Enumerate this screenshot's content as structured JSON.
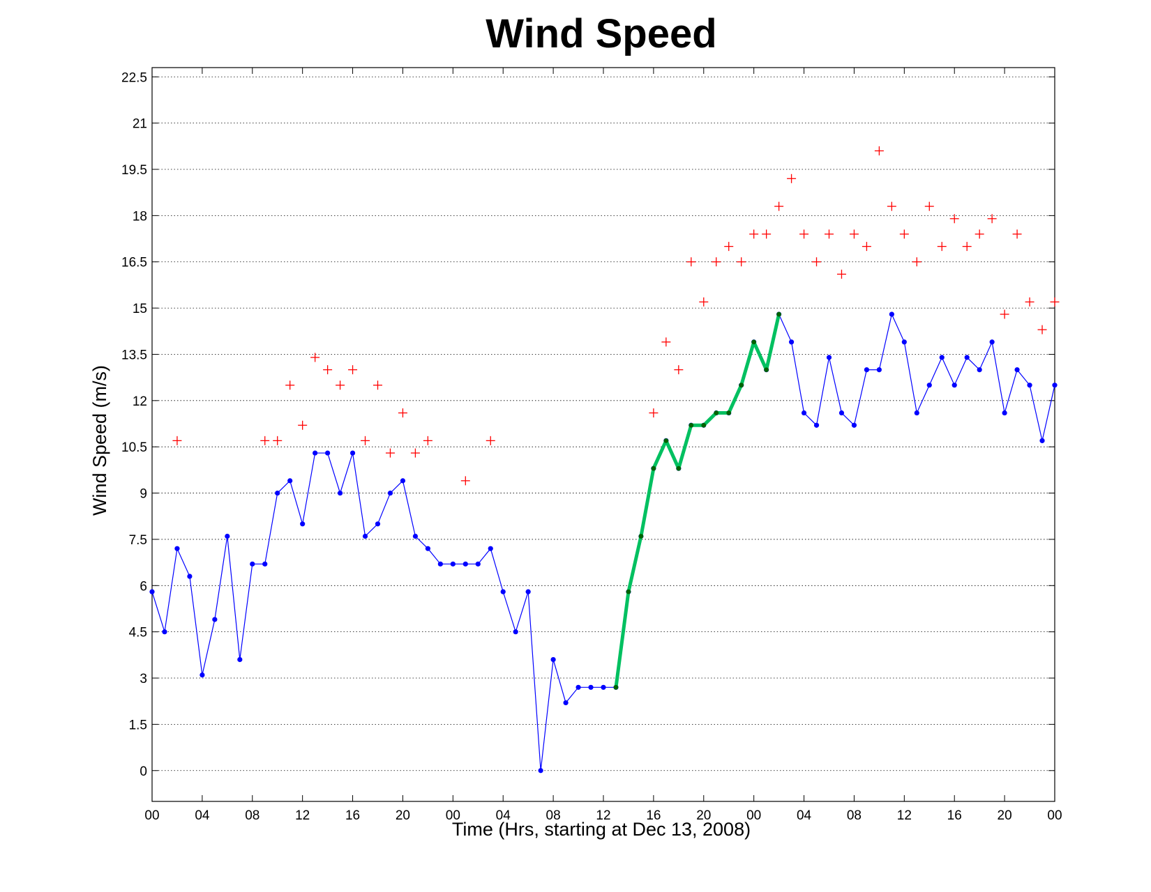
{
  "chart_data": {
    "type": "line",
    "title": "Wind Speed",
    "xlabel": "Time (Hrs, starting at Dec 13, 2008)",
    "ylabel": "Wind Speed (m/s)",
    "grid": true,
    "xlim": [
      0,
      72
    ],
    "ylim": [
      -1,
      22.8
    ],
    "x_tick_labels": [
      "00",
      "04",
      "08",
      "12",
      "16",
      "20",
      "00",
      "04",
      "08",
      "12",
      "16",
      "20",
      "00",
      "04",
      "08",
      "12",
      "16",
      "20",
      "00"
    ],
    "y_tick_labels": [
      "0",
      "1.5",
      "3",
      "4.5",
      "6",
      "7.5",
      "9",
      "10.5",
      "12",
      "13.5",
      "15",
      "16.5",
      "18",
      "19.5",
      "21",
      "22.5"
    ],
    "colors": {
      "observed": "#0000ff",
      "highlight": "#00c060",
      "highlight_marker": "#006400",
      "gust": "#ff0000"
    },
    "series": [
      {
        "role": "observed",
        "style": "blue line with dot markers",
        "x": [
          0,
          1,
          2,
          3,
          4,
          5,
          6,
          7,
          8,
          9,
          10,
          11,
          12,
          13,
          14,
          15,
          16,
          17,
          18,
          19,
          20,
          21,
          22,
          23,
          24,
          25,
          26,
          27,
          28,
          29,
          30,
          31,
          32,
          33,
          34,
          35,
          36,
          37,
          38,
          39,
          40,
          41,
          42,
          43,
          44,
          45,
          46,
          47,
          48,
          49,
          50,
          51,
          52,
          53,
          54,
          55,
          56,
          57,
          58,
          59,
          60,
          61,
          62,
          63,
          64,
          65,
          66,
          67,
          68,
          69,
          70,
          71,
          72
        ],
        "y": [
          5.8,
          4.5,
          7.2,
          6.3,
          3.1,
          4.9,
          7.6,
          3.6,
          6.7,
          6.7,
          9.0,
          9.4,
          8.0,
          10.3,
          10.3,
          9.0,
          10.3,
          7.6,
          8.0,
          9.0,
          9.4,
          7.6,
          7.2,
          6.7,
          6.7,
          6.7,
          6.7,
          7.2,
          5.8,
          4.5,
          5.8,
          0.0,
          3.6,
          2.2,
          2.7,
          2.7,
          2.7,
          2.7,
          5.8,
          7.6,
          9.8,
          10.7,
          9.8,
          11.2,
          11.2,
          11.6,
          11.6,
          12.5,
          13.9,
          13.0,
          14.8,
          13.9,
          11.6,
          11.2,
          13.4,
          11.6,
          11.2,
          13.0,
          13.0,
          14.8,
          13.9,
          11.6,
          12.5,
          13.4,
          12.5,
          13.4,
          13.0,
          13.9,
          11.6,
          13.0,
          12.5,
          10.7,
          12.5
        ]
      },
      {
        "role": "highlight",
        "style": "thick green line with dark green markers",
        "x": [
          37,
          38,
          39,
          40,
          41,
          42,
          43,
          44,
          45,
          46,
          47,
          48,
          49,
          50
        ],
        "y": [
          2.7,
          5.8,
          7.6,
          9.8,
          10.7,
          9.8,
          11.2,
          11.2,
          11.6,
          11.6,
          12.5,
          13.9,
          13.0,
          14.8
        ]
      },
      {
        "role": "gust",
        "style": "red plus markers",
        "x": [
          2,
          9,
          10,
          11,
          12,
          13,
          14,
          15,
          16,
          17,
          18,
          19,
          20,
          21,
          22,
          25,
          27,
          40,
          41,
          42,
          43,
          44,
          45,
          46,
          47,
          48,
          49,
          50,
          51,
          52,
          53,
          54,
          55,
          56,
          57,
          58,
          59,
          60,
          61,
          62,
          63,
          64,
          65,
          66,
          67,
          68,
          69,
          70,
          71,
          72
        ],
        "y": [
          10.7,
          10.7,
          10.7,
          12.5,
          11.2,
          13.4,
          13.0,
          12.5,
          13.0,
          10.7,
          12.5,
          10.3,
          11.6,
          10.3,
          10.7,
          9.4,
          10.7,
          11.6,
          13.9,
          13.0,
          16.5,
          15.2,
          16.5,
          17.0,
          16.5,
          17.4,
          17.4,
          18.3,
          19.2,
          17.4,
          16.5,
          17.4,
          16.1,
          17.4,
          17.0,
          20.1,
          18.3,
          17.4,
          16.5,
          18.3,
          17.0,
          17.9,
          17.0,
          17.4,
          17.9,
          14.8,
          17.4,
          15.2,
          14.3,
          15.2
        ]
      }
    ]
  }
}
